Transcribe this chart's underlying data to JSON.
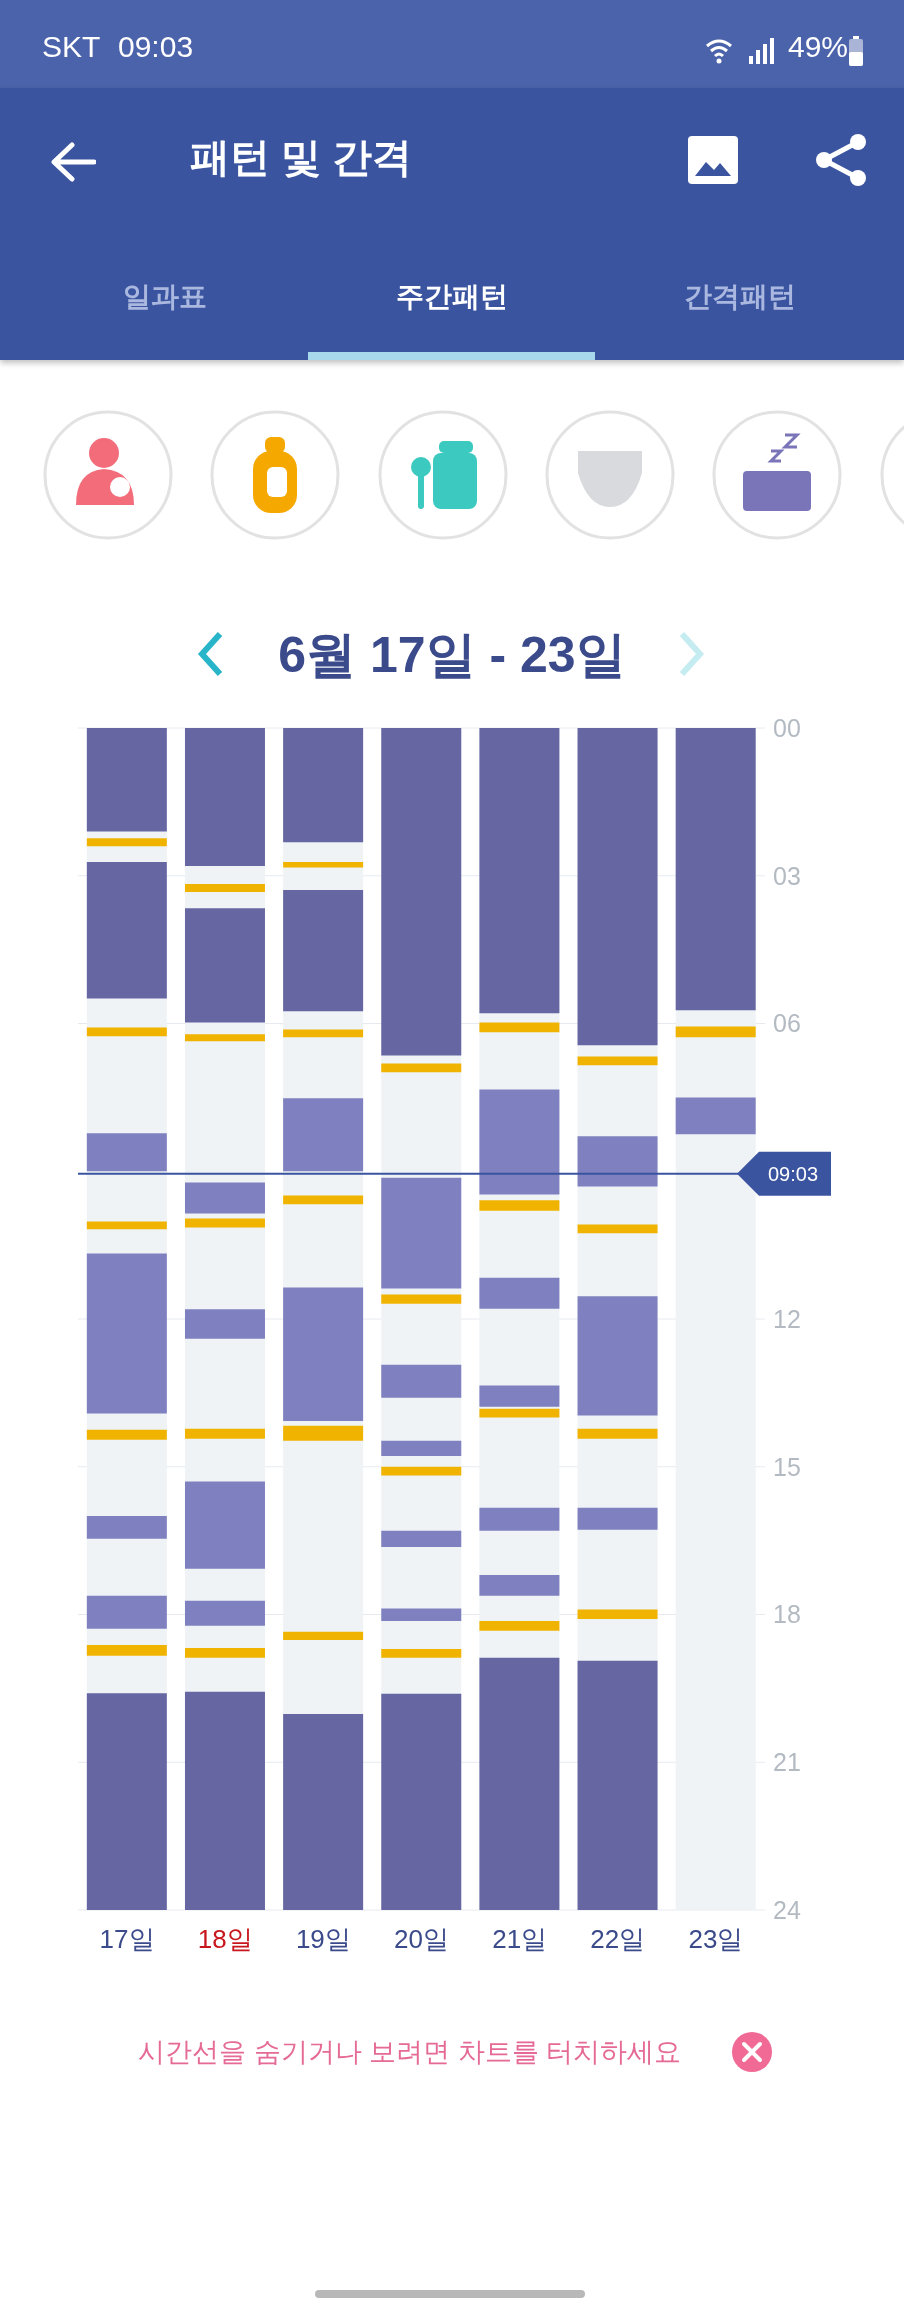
{
  "chart_data": {
    "type": "bar",
    "title": "패턴 및 간격",
    "subtitle": "6월 17일 - 23일",
    "annotations": [
      "SKT",
      "09:03",
      "49%",
      "일과표",
      "주간패턴",
      "간격패턴",
      "시간선을 숨기거나 보려면 차트를 터치하세요"
    ],
    "categories": [
      "17일",
      "18일",
      "19일",
      "20일",
      "21일",
      "22일",
      "23일"
    ],
    "ylim": [
      24,
      0
    ],
    "yticks": [
      {
        "value": 0,
        "label": "00"
      },
      {
        "value": 3,
        "label": "03"
      },
      {
        "value": 6,
        "label": "06"
      },
      12,
      15,
      18,
      21,
      24
    ],
    "grid": "y",
    "ref_lines": [
      {
        "axis": "y",
        "value": 9.05,
        "label": "09:03",
        "color": "#3a54a0"
      }
    ],
    "series": [
      {
        "type": "bar",
        "color": "#6666a3",
        "base": [
          0,
          0,
          0,
          0,
          0,
          0,
          0
        ],
        "values": [
          2.1,
          2.8,
          2.32,
          6.65,
          5.79,
          6.44,
          5.73
        ]
      },
      {
        "type": "bar",
        "color": "#6666a3",
        "base": [
          2.72,
          3.66,
          3.29,
          null,
          null,
          null,
          null
        ],
        "values": [
          2.77,
          2.32,
          2.46,
          null,
          null,
          null,
          null
        ]
      },
      {
        "type": "bar",
        "color": "#6666a3",
        "base": [
          19.6,
          19.57,
          20.02,
          19.61,
          18.88,
          18.94,
          null
        ],
        "values": [
          4.4,
          4.43,
          3.98,
          4.39,
          5.12,
          5.06,
          null
        ]
      },
      {
        "type": "bar",
        "color": "#7f80bf",
        "base": [
          8.23,
          9.23,
          7.52,
          9.13,
          7.34,
          8.29,
          7.5
        ],
        "values": [
          0.77,
          0.63,
          1.48,
          2.25,
          2.13,
          1.02,
          0.75
        ]
      },
      {
        "type": "bar",
        "color": "#7f80bf",
        "base": [
          10.67,
          11.8,
          11.36,
          12.93,
          11.16,
          11.54,
          null
        ],
        "values": [
          3.25,
          0.6,
          2.71,
          0.67,
          0.63,
          2.42,
          null
        ]
      },
      {
        "type": "bar",
        "color": "#7f80bf",
        "base": [
          16.0,
          15.3,
          null,
          14.47,
          13.35,
          15.83,
          null
        ],
        "values": [
          0.46,
          1.77,
          null,
          0.31,
          0.43,
          0.45,
          null
        ]
      },
      {
        "type": "bar",
        "color": "#7f80bf",
        "base": [
          17.62,
          17.72,
          null,
          16.3,
          15.83,
          null,
          null
        ],
        "values": [
          0.67,
          0.51,
          null,
          0.33,
          0.47,
          null,
          null
        ]
      },
      {
        "type": "bar",
        "color": "#7f80bf",
        "base": [
          null,
          null,
          null,
          17.88,
          17.2,
          null,
          null
        ],
        "values": [
          null,
          null,
          null,
          0.25,
          0.42,
          null,
          null
        ]
      },
      {
        "type": "bar",
        "color": "#f0b400",
        "base": [
          2.24,
          3.17,
          2.72,
          6.81,
          5.98,
          6.67,
          6.06
        ],
        "values": [
          0.16,
          0.16,
          0.11,
          0.18,
          0.2,
          0.18,
          0.22
        ]
      },
      {
        "type": "bar",
        "color": "#f0b400",
        "base": [
          6.08,
          6.22,
          6.12,
          11.5,
          9.59,
          10.08,
          null
        ],
        "values": [
          0.18,
          0.14,
          0.16,
          0.19,
          0.21,
          0.18,
          null
        ]
      },
      {
        "type": "bar",
        "color": "#f0b400",
        "base": [
          10.02,
          9.96,
          9.49,
          15.0,
          13.82,
          14.23,
          null
        ],
        "values": [
          0.16,
          0.18,
          0.18,
          0.18,
          0.18,
          0.2,
          null
        ]
      },
      {
        "type": "bar",
        "color": "#f0b400",
        "base": [
          14.25,
          14.23,
          14.17,
          18.7,
          18.13,
          17.9,
          null
        ],
        "values": [
          0.2,
          0.2,
          0.3,
          0.18,
          0.2,
          0.19,
          null
        ]
      },
      {
        "type": "bar",
        "color": "#f0b400",
        "base": [
          18.62,
          18.68,
          18.35,
          null,
          null,
          null,
          null
        ],
        "values": [
          0.22,
          0.2,
          0.17,
          null,
          null,
          null,
          null
        ]
      }
    ]
  }
}
